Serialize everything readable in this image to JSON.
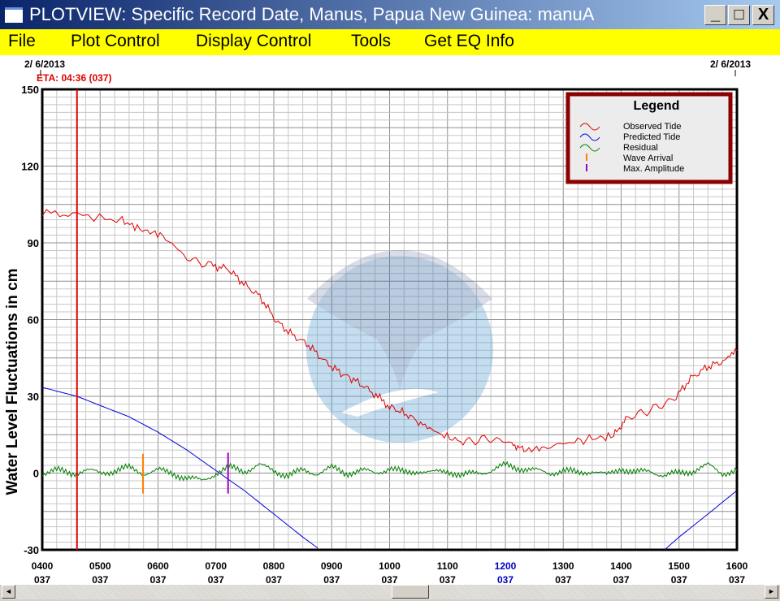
{
  "window": {
    "title": "PLOTVIEW: Specific Record Date, Manus, Papua New Guinea: manuA",
    "minimize": "_",
    "maximize": "□",
    "close": "X"
  },
  "menu": [
    "File",
    "Plot Control",
    "Display Control",
    "Tools",
    "Get EQ Info"
  ],
  "header": {
    "date_left": "2/ 6/2013",
    "date_right": "2/ 6/2013",
    "eta": "ETA: 04:36 (037)"
  },
  "colors": {
    "observed": "#e00000",
    "predicted": "#0000e0",
    "residual": "#008000",
    "wave_arrival": "#ff8000",
    "max_amplitude": "#a000c0",
    "eta_line": "#e00000",
    "legend_border": "#8b0000",
    "highlight_tick": "#0000c0"
  },
  "chart_data": {
    "type": "line",
    "ylabel": "Water Level Fluctuations in cm",
    "ylim": [
      -30,
      150
    ],
    "yticks": [
      150,
      120,
      90,
      60,
      30,
      0,
      -30
    ],
    "xlim_hours": [
      4,
      16
    ],
    "xticks": [
      {
        "label": "0400",
        "day": "037"
      },
      {
        "label": "0500",
        "day": "037"
      },
      {
        "label": "0600",
        "day": "037"
      },
      {
        "label": "0700",
        "day": "037"
      },
      {
        "label": "0800",
        "day": "037"
      },
      {
        "label": "0900",
        "day": "037"
      },
      {
        "label": "1000",
        "day": "037"
      },
      {
        "label": "1100",
        "day": "037"
      },
      {
        "label": "1200",
        "day": "037",
        "highlight": true
      },
      {
        "label": "1300",
        "day": "037"
      },
      {
        "label": "1400",
        "day": "037"
      },
      {
        "label": "1500",
        "day": "037"
      },
      {
        "label": "1600",
        "day": "037"
      }
    ],
    "grid": true,
    "legend": {
      "title": "Legend",
      "placement": "top-right",
      "entries": [
        "Observed Tide",
        "Predicted Tide",
        "Residual",
        "Wave Arrival",
        "Max. Amplitude"
      ]
    },
    "eta_hour": 4.6,
    "wave_arrival_hour": 5.74,
    "max_amplitude_hour": 7.21,
    "series": [
      {
        "name": "Observed Tide",
        "x": [
          4.0,
          4.6,
          5.38,
          5.73,
          6.08,
          6.5,
          6.92,
          7.2,
          7.48,
          7.76,
          8.04,
          8.32,
          8.6,
          8.88,
          9.16,
          9.45,
          9.73,
          10.0,
          10.29,
          10.57,
          10.9,
          11.27,
          11.69,
          12.11,
          12.32,
          12.67,
          13.1,
          13.5,
          13.87,
          14.08,
          14.5,
          14.92,
          15.2,
          15.48,
          15.76,
          16.0
        ],
        "y": [
          101.7,
          101,
          98.6,
          95,
          93,
          84,
          81,
          80,
          74,
          69,
          59.5,
          54,
          50,
          43.7,
          39,
          35.7,
          31,
          26,
          23,
          19,
          15,
          12,
          13.5,
          12,
          8.7,
          10,
          12,
          13.5,
          14.4,
          21.4,
          24.6,
          29,
          37,
          41.4,
          43.7,
          47.8
        ]
      },
      {
        "name": "Predicted Tide",
        "x": [
          4.0,
          4.6,
          5.5,
          6.0,
          6.5,
          7.0,
          7.5,
          8.0,
          8.5,
          8.8,
          14.75,
          15.0,
          15.5,
          16.0
        ],
        "y": [
          33.5,
          30,
          22,
          16,
          9,
          1,
          -7,
          -16,
          -25,
          -30,
          -30,
          -25,
          -16,
          -6.8
        ]
      },
      {
        "name": "Residual",
        "x": [
          4.0,
          4.25,
          4.5,
          4.75,
          5.0,
          5.25,
          5.5,
          5.75,
          6.0,
          6.25,
          6.5,
          6.75,
          7.0,
          7.25,
          7.5,
          7.75,
          8.0,
          8.25,
          8.5,
          8.75,
          9.0,
          9.25,
          9.5,
          9.75,
          10.0,
          10.25,
          10.5,
          10.75,
          11.0,
          11.25,
          11.5,
          11.75,
          12.0,
          12.25,
          12.5,
          12.75,
          13.0,
          13.25,
          13.5,
          13.75,
          14.0,
          14.25,
          14.5,
          14.75,
          15.0,
          15.25,
          15.5,
          15.75,
          16.0
        ],
        "y": [
          0,
          1,
          0,
          1,
          0,
          1,
          2,
          0,
          1,
          0,
          -2,
          -3,
          0,
          2,
          1,
          3,
          1,
          -1,
          1,
          0,
          2,
          0,
          1,
          0,
          2,
          0,
          1,
          0,
          1,
          -1,
          0,
          1,
          3,
          2,
          1,
          0,
          1,
          0,
          1,
          -1,
          2,
          0,
          1,
          -1,
          0,
          1,
          3,
          0,
          1
        ]
      }
    ]
  },
  "scrollbar": {
    "left": "◄",
    "right": "►"
  }
}
